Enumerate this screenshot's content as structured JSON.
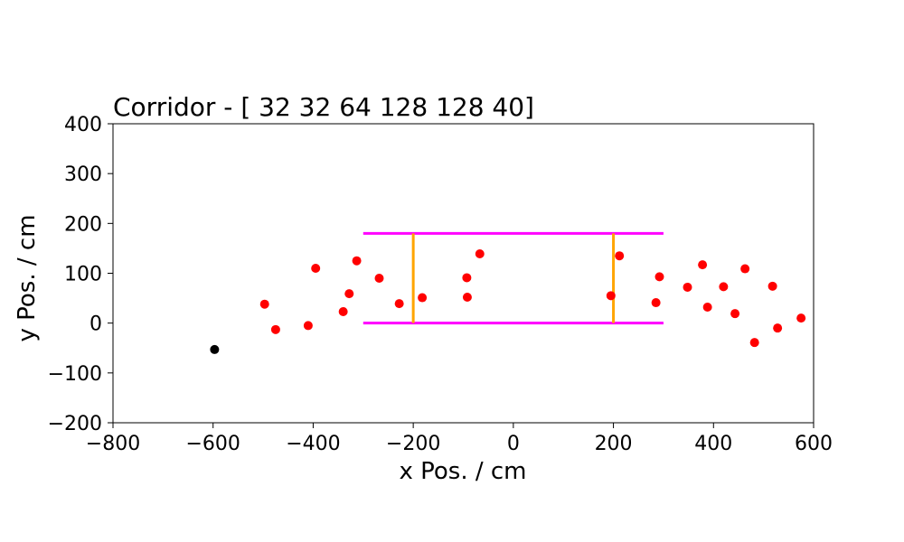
{
  "chart_data": {
    "type": "scatter",
    "title": "Corridor - [ 32  32  64 128 128  40]",
    "xlabel": "x Pos. / cm",
    "ylabel": "y Pos. / cm",
    "xlim": [
      -800,
      600
    ],
    "ylim": [
      -200,
      400
    ],
    "xticks": [
      -800,
      -600,
      -400,
      -200,
      0,
      200,
      400,
      600
    ],
    "yticks": [
      -200,
      -100,
      0,
      100,
      200,
      300,
      400
    ],
    "xtick_labels": [
      "−800",
      "−600",
      "−400",
      "−200",
      "0",
      "200",
      "400",
      "600"
    ],
    "ytick_labels": [
      "−200",
      "−100",
      "0",
      "100",
      "200",
      "300",
      "400"
    ],
    "grid": false,
    "corridor_walls": {
      "color": "#ff00ff",
      "segments": [
        {
          "x": [
            -300,
            300
          ],
          "y": [
            180,
            180
          ]
        },
        {
          "x": [
            -300,
            300
          ],
          "y": [
            0,
            0
          ]
        }
      ]
    },
    "gates": {
      "color": "#ffa500",
      "segments": [
        {
          "x": [
            -200,
            -200
          ],
          "y": [
            0,
            180
          ]
        },
        {
          "x": [
            200,
            200
          ],
          "y": [
            0,
            180
          ]
        }
      ]
    },
    "series": [
      {
        "color": "#ff0000",
        "points": [
          [
            -497,
            38
          ],
          [
            -475,
            -13
          ],
          [
            -410,
            -5
          ],
          [
            -395,
            110
          ],
          [
            -340,
            23
          ],
          [
            -328,
            59
          ],
          [
            -313,
            125
          ],
          [
            -268,
            90
          ],
          [
            -228,
            39
          ],
          [
            -182,
            51
          ],
          [
            -93,
            91
          ],
          [
            -92,
            52
          ],
          [
            -67,
            139
          ],
          [
            195,
            55
          ],
          [
            212,
            135
          ],
          [
            285,
            41
          ],
          [
            292,
            93
          ],
          [
            348,
            72
          ],
          [
            378,
            117
          ],
          [
            388,
            32
          ],
          [
            420,
            73
          ],
          [
            443,
            19
          ],
          [
            463,
            109
          ],
          [
            482,
            -39
          ],
          [
            518,
            74
          ],
          [
            528,
            -10
          ],
          [
            575,
            10
          ]
        ]
      },
      {
        "color": "#000000",
        "points": [
          [
            -597,
            -53
          ]
        ]
      }
    ]
  }
}
